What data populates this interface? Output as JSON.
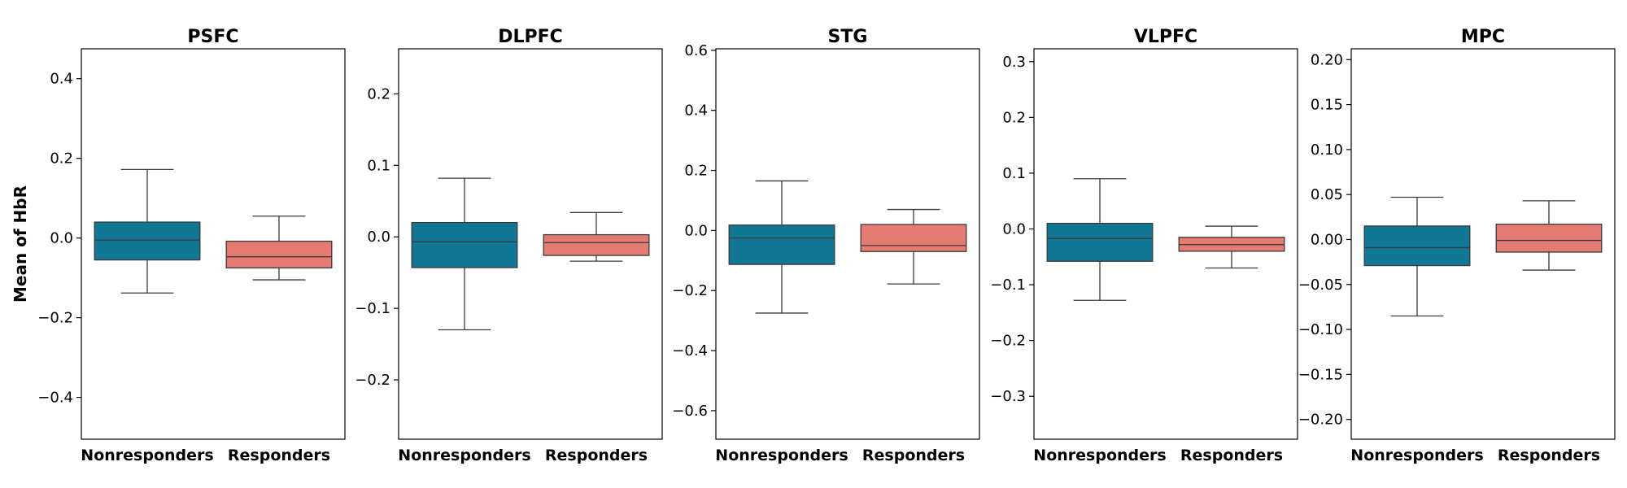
{
  "colors": {
    "nonresponders": "#107895",
    "responders": "#E57B73",
    "line": "#3a3a3a",
    "frame": "#000000"
  },
  "chart_data": [
    {
      "type": "box",
      "title": "PSFC",
      "ylabel": "Mean of HbR",
      "categories": [
        "Nonresponders",
        "Responders"
      ],
      "ylim": [
        -0.505,
        0.475
      ],
      "yticks": [
        -0.4,
        -0.2,
        0.0,
        0.2,
        0.4
      ],
      "ytick_labels": [
        "−0.4",
        "−0.2",
        "0.0",
        "0.2",
        "0.4"
      ],
      "boxes": [
        {
          "whisker_low": -0.138,
          "q1": -0.055,
          "median": -0.005,
          "q3": 0.04,
          "whisker_high": 0.172
        },
        {
          "whisker_low": -0.105,
          "q1": -0.075,
          "median": -0.047,
          "q3": -0.008,
          "whisker_high": 0.055
        }
      ]
    },
    {
      "type": "box",
      "title": "DLPFC",
      "categories": [
        "Nonresponders",
        "Responders"
      ],
      "ylim": [
        -0.283,
        0.263
      ],
      "yticks": [
        -0.2,
        -0.1,
        0.0,
        0.1,
        0.2
      ],
      "ytick_labels": [
        "−0.2",
        "−0.1",
        "0.0",
        "0.1",
        "0.2"
      ],
      "boxes": [
        {
          "whisker_low": -0.13,
          "q1": -0.043,
          "median": -0.007,
          "q3": 0.02,
          "whisker_high": 0.082
        },
        {
          "whisker_low": -0.034,
          "q1": -0.026,
          "median": -0.008,
          "q3": 0.003,
          "whisker_high": 0.034
        }
      ]
    },
    {
      "type": "box",
      "title": "STG",
      "categories": [
        "Nonresponders",
        "Responders"
      ],
      "ylim": [
        -0.695,
        0.605
      ],
      "yticks": [
        -0.6,
        -0.4,
        -0.2,
        0.0,
        0.2,
        0.4,
        0.6
      ],
      "ytick_labels": [
        "−0.6",
        "−0.4",
        "−0.2",
        "0.0",
        "0.2",
        "0.4",
        "0.6"
      ],
      "boxes": [
        {
          "whisker_low": -0.275,
          "q1": -0.113,
          "median": -0.025,
          "q3": 0.018,
          "whisker_high": 0.165
        },
        {
          "whisker_low": -0.178,
          "q1": -0.07,
          "median": -0.05,
          "q3": 0.02,
          "whisker_high": 0.07
        }
      ]
    },
    {
      "type": "box",
      "title": "VLPFC",
      "categories": [
        "Nonresponders",
        "Responders"
      ],
      "ylim": [
        -0.377,
        0.323
      ],
      "yticks": [
        -0.3,
        -0.2,
        -0.1,
        0.0,
        0.1,
        0.2,
        0.3
      ],
      "ytick_labels": [
        "−0.3",
        "−0.2",
        "−0.1",
        "0.0",
        "0.1",
        "0.2",
        "0.3"
      ],
      "boxes": [
        {
          "whisker_low": -0.128,
          "q1": -0.058,
          "median": -0.017,
          "q3": 0.01,
          "whisker_high": 0.09
        },
        {
          "whisker_low": -0.07,
          "q1": -0.04,
          "median": -0.028,
          "q3": -0.015,
          "whisker_high": 0.005
        }
      ]
    },
    {
      "type": "box",
      "title": "MPC",
      "categories": [
        "Nonresponders",
        "Responders"
      ],
      "ylim": [
        -0.222,
        0.212
      ],
      "yticks": [
        -0.2,
        -0.15,
        -0.1,
        -0.05,
        0.0,
        0.05,
        0.1,
        0.15,
        0.2
      ],
      "ytick_labels": [
        "−0.20",
        "−0.15",
        "−0.10",
        "−0.05",
        "0.00",
        "0.05",
        "0.10",
        "0.15",
        "0.20"
      ],
      "boxes": [
        {
          "whisker_low": -0.085,
          "q1": -0.029,
          "median": -0.009,
          "q3": 0.015,
          "whisker_high": 0.047
        },
        {
          "whisker_low": -0.034,
          "q1": -0.014,
          "median": -0.001,
          "q3": 0.017,
          "whisker_high": 0.043
        }
      ]
    }
  ]
}
